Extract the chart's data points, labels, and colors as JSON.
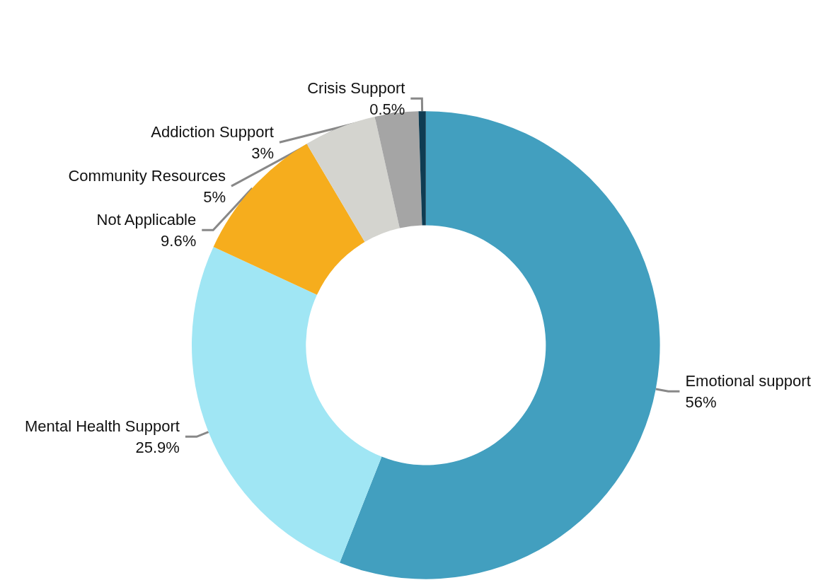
{
  "chart_data": {
    "type": "donut",
    "categories": [
      "Emotional support",
      "Mental Health Support",
      "Not Applicable",
      "Community Resources",
      "Addiction Support",
      "Crisis Support"
    ],
    "values": [
      56,
      25.9,
      9.6,
      5,
      3,
      0.5
    ],
    "colors": [
      "#429fbf",
      "#a0e6f4",
      "#f6ad1d",
      "#d4d4cf",
      "#a5a5a5",
      "#0f3c52"
    ],
    "value_labels": [
      "56%",
      "25.9%",
      "9.6%",
      "5%",
      "3%",
      "0.5%"
    ]
  }
}
